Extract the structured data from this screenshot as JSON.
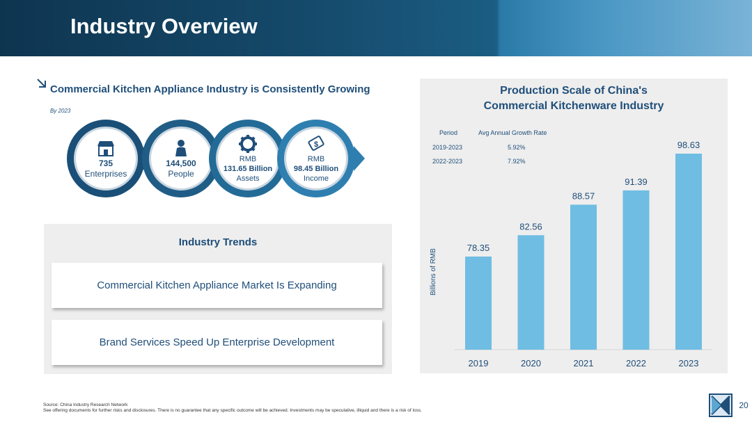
{
  "header": {
    "title": "Industry Overview"
  },
  "left": {
    "title": "Commercial Kitchen Appliance Industry is Consistently Growing",
    "by_year": "By 2023",
    "stats": [
      {
        "icon": "store-icon",
        "line1": "735",
        "line2": "Enterprises"
      },
      {
        "icon": "person-icon",
        "line1": "144,500",
        "line2": "People"
      },
      {
        "icon": "gear-icon",
        "top": "RMB",
        "mid": "131.65 Billion",
        "bot": "Assets"
      },
      {
        "icon": "money-icon",
        "top": "RMB",
        "mid": "98.45 Billion",
        "bot": "Income"
      }
    ]
  },
  "trends": {
    "title": "Industry Trends",
    "items": [
      "Commercial Kitchen Appliance Market Is Expanding",
      "Brand Services Speed Up Enterprise Development"
    ]
  },
  "chart_data": {
    "type": "bar",
    "title_line1": "Production Scale of China's",
    "title_line2": "Commercial Kitchenware Industry",
    "ylabel": "Billions of RMB",
    "xlabel": "",
    "categories": [
      "2019",
      "2020",
      "2021",
      "2022",
      "2023"
    ],
    "values": [
      78.35,
      82.56,
      88.57,
      91.39,
      98.63
    ],
    "data_labels": [
      "78.35",
      "82.56",
      "88.57",
      "91.39",
      "98.63"
    ],
    "ylim": [
      60,
      100
    ],
    "bar_color": "#6fbde3",
    "growth_table": {
      "headers": [
        "Period",
        "Avg Annual Growth Rate"
      ],
      "rows": [
        [
          "2019-2023",
          "5.92%"
        ],
        [
          "2022-2023",
          "7.92%"
        ]
      ]
    }
  },
  "footer": {
    "source": "Source: China Industry Research Network",
    "disclaimer": "See offering documents for further risks and disclosures. There is no guarantee that any specific outcome will be achieved. Investments may be speculative, illiquid and there is a risk of loss."
  },
  "page_number": "20",
  "colors": {
    "navy": "#1f4e79",
    "header_dark": "#0e3550",
    "bar": "#6fbde3",
    "circle_ring": "#1f5d86",
    "arrow": "#2e7fb0"
  }
}
